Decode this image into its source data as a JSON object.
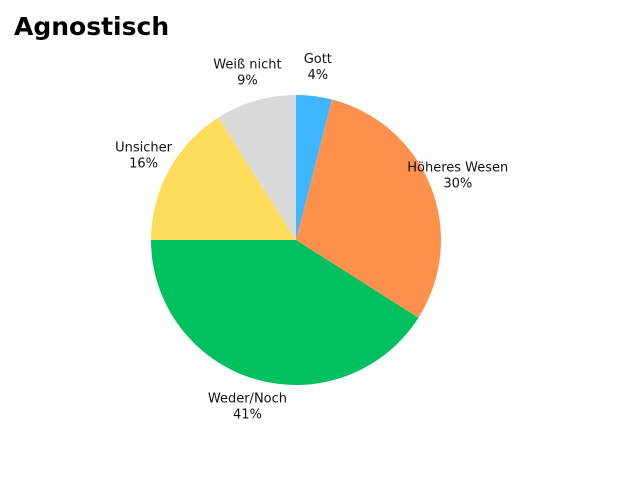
{
  "chart_data": {
    "type": "pie",
    "title": "Agnostisch",
    "categories": [
      "Gott",
      "Höheres Wesen",
      "Weder/Noch",
      "Unsicher",
      "Weiß nicht"
    ],
    "values": [
      4,
      30,
      41,
      16,
      9
    ],
    "value_labels": [
      "4%",
      "30%",
      "41%",
      "16%",
      "9%"
    ],
    "colors": [
      "#3fb6ff",
      "#ff914d",
      "#00c060",
      "#ffdc5c",
      "#d9d9d9"
    ]
  }
}
